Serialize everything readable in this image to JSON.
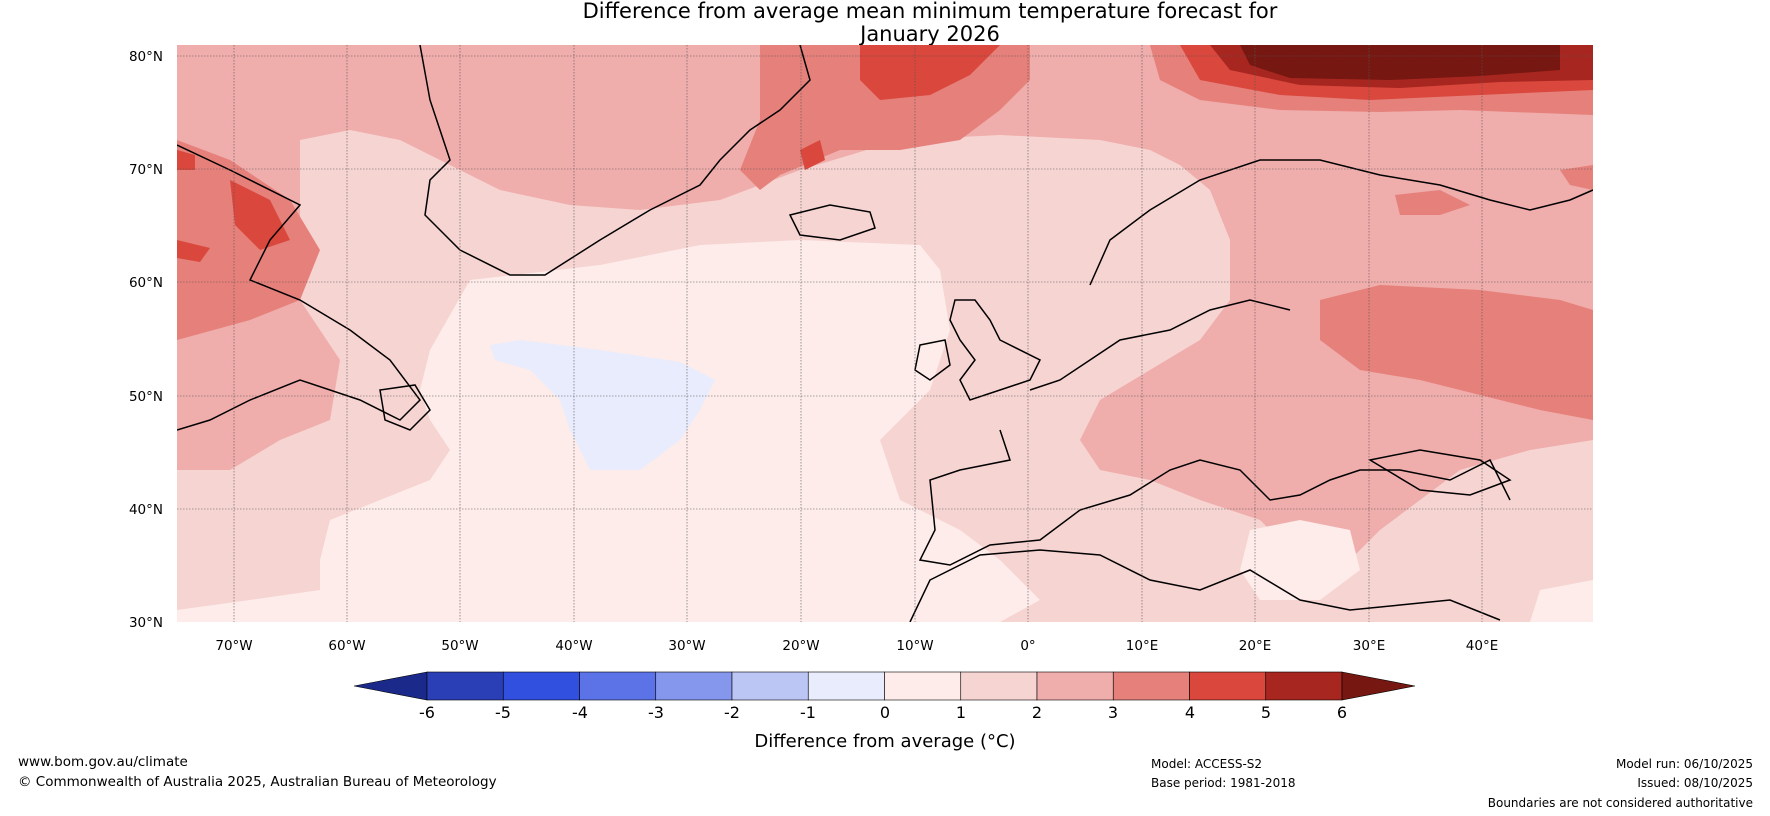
{
  "title": {
    "line1": "Difference from average mean minimum temperature forecast for",
    "line2": "January 2026"
  },
  "axes": {
    "lat_ticks": [
      "80°N",
      "70°N",
      "60°N",
      "50°N",
      "40°N",
      "30°N"
    ],
    "lon_ticks": [
      "70°W",
      "60°W",
      "50°W",
      "40°W",
      "30°W",
      "20°W",
      "10°W",
      "0°",
      "10°E",
      "20°E",
      "30°E",
      "40°E"
    ]
  },
  "colorbar": {
    "ticks": [
      "-6",
      "-5",
      "-4",
      "-3",
      "-2",
      "-1",
      "0",
      "1",
      "2",
      "3",
      "4",
      "5",
      "6"
    ],
    "label": "Difference from average (°C)",
    "colors": [
      "#1b2a8a",
      "#2a3fb5",
      "#3150e0",
      "#5c73e8",
      "#8597ed",
      "#bcc6f4",
      "#e8ecfc",
      "#fdecea",
      "#f6d4d2",
      "#efadab",
      "#e6807b",
      "#d9473d",
      "#a82620",
      "#761711"
    ]
  },
  "footer": {
    "website": "www.bom.gov.au/climate",
    "copyright": "© Commonwealth of Australia 2025, Australian Bureau of Meteorology",
    "model": "Model: ACCESS-S2",
    "base_period": "Base period: 1981-2018",
    "model_run": "Model run: 06/10/2025",
    "issued": "Issued: 08/10/2025",
    "disclaimer": "Boundaries are not considered authoritative"
  }
}
